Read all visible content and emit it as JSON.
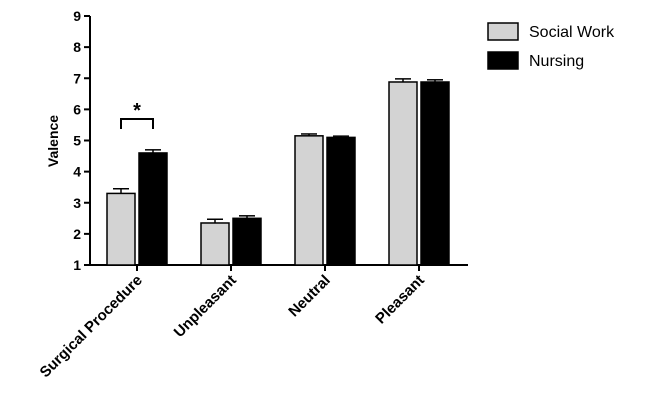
{
  "chart_data": {
    "type": "bar",
    "ylabel": "Valence",
    "xlabel": "",
    "ylim": [
      1,
      9
    ],
    "yticks": [
      1,
      2,
      3,
      4,
      5,
      6,
      7,
      8,
      9
    ],
    "categories": [
      "Surgical Procedure",
      "Unpleasant",
      "Neutral",
      "Pleasant"
    ],
    "series": [
      {
        "name": "Social Work",
        "color": "#d3d3d3",
        "values": [
          3.3,
          2.35,
          5.15,
          6.88
        ],
        "errors": [
          0.15,
          0.12,
          0.06,
          0.1
        ]
      },
      {
        "name": "Nursing",
        "color": "#000000",
        "values": [
          4.6,
          2.5,
          5.1,
          6.88
        ],
        "errors": [
          0.1,
          0.08,
          0.04,
          0.07
        ]
      }
    ],
    "legend_position": "top-right",
    "grid": false,
    "annotations": [
      {
        "text": "*",
        "category": "Surgical Procedure",
        "type": "significance-bracket"
      }
    ]
  }
}
